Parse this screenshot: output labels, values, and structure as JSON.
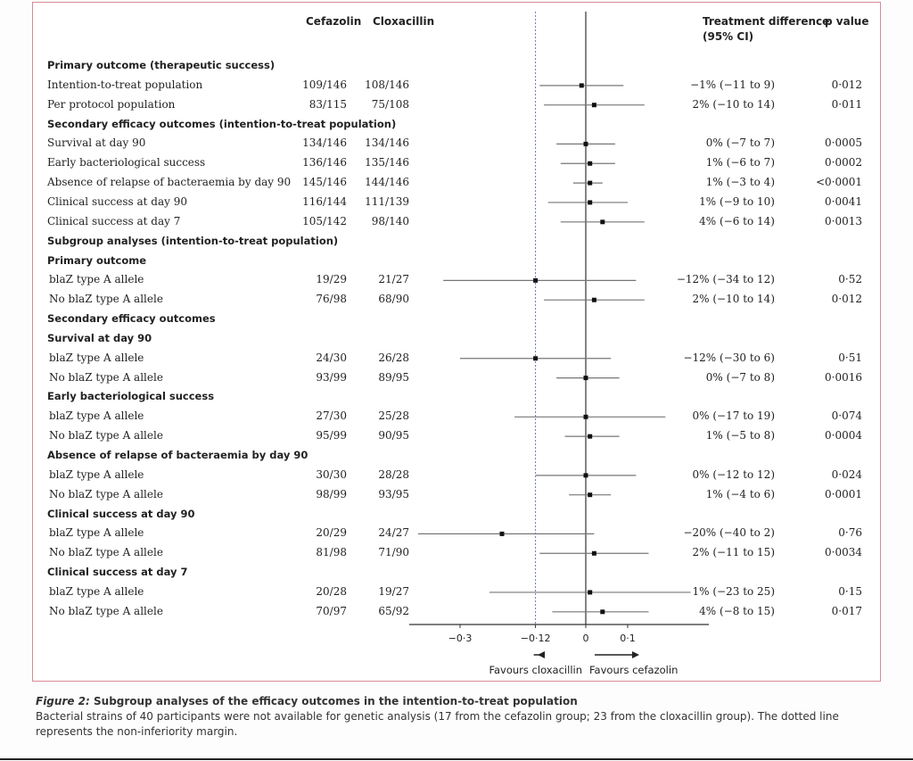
{
  "headers": {
    "cefazolin": "Cefazolin",
    "cloxacillin": "Cloxacillin",
    "treatment_difference": "Treatment difference",
    "ci": "(95% CI)",
    "p_value": "p value"
  },
  "chart_data": {
    "type": "forest",
    "xlim": [
      -0.45,
      0.3
    ],
    "ticks": [
      -0.3,
      -0.12,
      0,
      0.1
    ],
    "tick_labels": [
      "−0·3",
      "−0·12",
      "0",
      "0·1"
    ],
    "margin": -0.12,
    "favours_left": "Favours cloxacillin",
    "favours_right": "Favours cefazolin",
    "rows": [
      {
        "label": "Primary outcome (therapeutic success)",
        "heading": true
      },
      {
        "label": "Intention-to-treat population",
        "cef": "109/146",
        "clox": "108/146",
        "est": -0.01,
        "lo": -0.11,
        "hi": 0.09,
        "ci": "−1% (−11 to 9)",
        "p": "0·012"
      },
      {
        "label": "Per protocol  population",
        "cef": "83/115",
        "clox": "75/108",
        "est": 0.02,
        "lo": -0.1,
        "hi": 0.14,
        "ci": "2% (−10 to 14)",
        "p": "0·011"
      },
      {
        "label": "Secondary efficacy outcomes (intention-to-treat population)",
        "heading": true
      },
      {
        "label": "Survival at day 90",
        "cef": "134/146",
        "clox": "134/146",
        "est": 0.0,
        "lo": -0.07,
        "hi": 0.07,
        "ci": "0% (−7 to 7)",
        "p": "0·0005"
      },
      {
        "label": "Early bacteriological success",
        "cef": "136/146",
        "clox": "135/146",
        "est": 0.01,
        "lo": -0.06,
        "hi": 0.07,
        "ci": "1% (−6 to 7)",
        "p": "0·0002"
      },
      {
        "label": "Absence of relapse of bacteraemia by day 90",
        "cef": "145/146",
        "clox": "144/146",
        "est": 0.01,
        "lo": -0.03,
        "hi": 0.04,
        "ci": "1% (−3 to 4)",
        "p": "<0·0001"
      },
      {
        "label": "Clinical success at day 90",
        "cef": "116/144",
        "clox": "111/139",
        "est": 0.01,
        "lo": -0.09,
        "hi": 0.1,
        "ci": "1% (−9 to 10)",
        "p": "0·0041"
      },
      {
        "label": "Clinical success at day 7",
        "cef": "105/142",
        "clox": "98/140",
        "est": 0.04,
        "lo": -0.06,
        "hi": 0.14,
        "ci": "4% (−6 to 14)",
        "p": "0·0013"
      },
      {
        "label": "Subgroup analyses (intention-to-treat population)",
        "heading": true
      },
      {
        "label": "Primary outcome",
        "heading": true
      },
      {
        "label": "blaZ type A allele",
        "cef": "19/29",
        "clox": "21/27",
        "est": -0.12,
        "lo": -0.34,
        "hi": 0.12,
        "ci": "−12% (−34 to 12)",
        "p": "0·52"
      },
      {
        "label": "No blaZ type A allele",
        "cef": "76/98",
        "clox": "68/90",
        "est": 0.02,
        "lo": -0.1,
        "hi": 0.14,
        "ci": "2% (−10 to 14)",
        "p": "0·012"
      },
      {
        "label": "Secondary efficacy outcomes",
        "heading": true
      },
      {
        "label": "Survival at day 90",
        "heading": true
      },
      {
        "label": "blaZ type A allele",
        "cef": "24/30",
        "clox": "26/28",
        "est": -0.12,
        "lo": -0.3,
        "hi": 0.06,
        "ci": "−12% (−30 to 6)",
        "p": "0·51"
      },
      {
        "label": "No blaZ type A allele",
        "cef": "93/99",
        "clox": "89/95",
        "est": 0.0,
        "lo": -0.07,
        "hi": 0.08,
        "ci": "0% (−7 to 8)",
        "p": "0·0016"
      },
      {
        "label": "Early bacteriological success",
        "heading": true
      },
      {
        "label": "blaZ type A allele",
        "cef": "27/30",
        "clox": "25/28",
        "est": 0.0,
        "lo": -0.17,
        "hi": 0.19,
        "ci": "0% (−17 to 19)",
        "p": "0·074"
      },
      {
        "label": "No blaZ type A allele",
        "cef": "95/99",
        "clox": "90/95",
        "est": 0.01,
        "lo": -0.05,
        "hi": 0.08,
        "ci": "1% (−5 to 8)",
        "p": "0·0004"
      },
      {
        "label": "Absence of relapse of bacteraemia by day 90",
        "heading": true
      },
      {
        "label": "blaZ type A allele",
        "cef": "30/30",
        "clox": "28/28",
        "est": 0.0,
        "lo": -0.12,
        "hi": 0.12,
        "ci": "0% (−12 to 12)",
        "p": "0·024"
      },
      {
        "label": "No blaZ type A allele",
        "cef": "98/99",
        "clox": "93/95",
        "est": 0.01,
        "lo": -0.04,
        "hi": 0.06,
        "ci": "1% (−4 to 6)",
        "p": "0·0001"
      },
      {
        "label": "Clinical success at day 90",
        "heading": true
      },
      {
        "label": "blaZ type A allele",
        "cef": "20/29",
        "clox": "24/27",
        "est": -0.2,
        "lo": -0.4,
        "hi": 0.02,
        "ci": "−20% (−40 to 2)",
        "p": "0·76"
      },
      {
        "label": "No blaZ type A allele",
        "cef": "81/98",
        "clox": "71/90",
        "est": 0.02,
        "lo": -0.11,
        "hi": 0.15,
        "ci": "2% (−11 to 15)",
        "p": "0·0034"
      },
      {
        "label": "Clinical success at day 7",
        "heading": true
      },
      {
        "label": "blaZ type A allele",
        "cef": "20/28",
        "clox": "19/27",
        "est": 0.01,
        "lo": -0.23,
        "hi": 0.25,
        "ci": "1% (−23 to 25)",
        "p": "0·15"
      },
      {
        "label": "No blaZ type A allele",
        "cef": "70/97",
        "clox": "65/92",
        "est": 0.04,
        "lo": -0.08,
        "hi": 0.15,
        "ci": "4% (−8 to 15)",
        "p": "0·017"
      }
    ]
  },
  "caption": {
    "figure_label": "Figure 2:",
    "title": "Subgroup analyses of the efficacy outcomes in the intention-to-treat population",
    "body": "Bacterial strains of 40 participants were not available for genetic analysis (17 from the cefazolin group; 23 from the cloxacillin group). The dotted line represents the non-inferiority margin."
  }
}
